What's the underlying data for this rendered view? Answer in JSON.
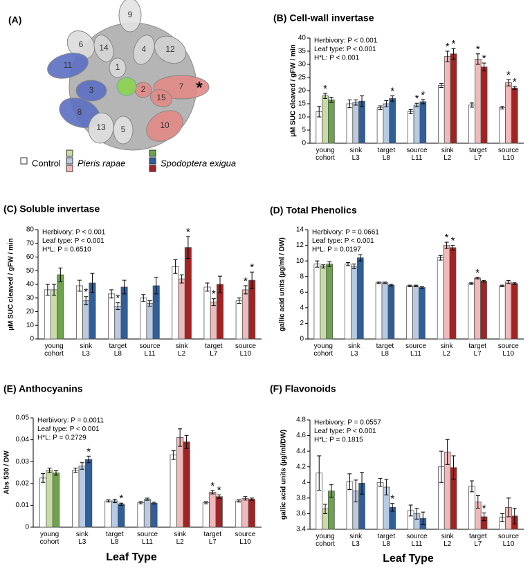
{
  "panel_a": {
    "label": "(A)",
    "leaves": [
      "9",
      "6",
      "14",
      "4",
      "12",
      "11",
      "1",
      "3",
      "7",
      "2",
      "15",
      "8",
      "13",
      "5",
      "10"
    ],
    "asterisk": "*"
  },
  "legend": [
    {
      "name": "Control",
      "colors": [
        "#ffffff"
      ]
    },
    {
      "name": "Pieris rapae",
      "colors": [
        "#c9dca5",
        "#b9cbe3",
        "#f1b9b9"
      ]
    },
    {
      "name": "Spodoptera exigua",
      "colors": [
        "#6da34c",
        "#2f5e98",
        "#a12323"
      ]
    }
  ],
  "chart_data": [
    {
      "type": "bar",
      "title": "(B) Cell-wall invertase",
      "ylabel": "µM SUC cleaved / gFW / min",
      "stats": [
        "Herbivory: P < 0.001",
        "Leaf type: P < 0.001",
        "H*L: P < 0.001"
      ],
      "categories": [
        "young\ncohort",
        "sink\nL3",
        "target\nL8",
        "source\nL11",
        "sink\nL2",
        "target\nL7",
        "source\nL10"
      ],
      "ylim": [
        0,
        40
      ],
      "yticks": [
        0,
        5,
        10,
        15,
        20,
        25,
        30,
        35,
        40
      ],
      "series": [
        {
          "colors": [
            "#ffffff",
            "#ffffff",
            "#ffffff",
            "#ffffff",
            "#ffffff",
            "#ffffff",
            "#ffffff"
          ],
          "values": [
            12,
            15,
            13.5,
            12,
            22,
            14.5,
            13.5
          ],
          "errors": [
            2,
            1.5,
            0.7,
            0.8,
            0.8,
            0.8,
            0.5
          ],
          "stars": [
            null,
            null,
            null,
            null,
            null,
            null,
            null
          ]
        },
        {
          "colors": [
            "#c9dca5",
            "#b9cbe3",
            "#b9cbe3",
            "#b9cbe3",
            "#f1b9b9",
            "#f1b9b9",
            "#f1b9b9"
          ],
          "values": [
            18,
            15.5,
            15,
            14.5,
            33,
            32,
            23
          ],
          "errors": [
            1,
            1,
            1.2,
            0.7,
            2,
            2,
            1.2
          ],
          "stars": [
            "*",
            null,
            null,
            "*",
            "*",
            "*",
            "*"
          ]
        },
        {
          "colors": [
            "#6da34c",
            "#2f5e98",
            "#2f5e98",
            "#2f5e98",
            "#a12323",
            "#a12323",
            "#a12323"
          ],
          "values": [
            16.5,
            16,
            17,
            15.8,
            34,
            29,
            21
          ],
          "errors": [
            1,
            2,
            1,
            0.8,
            2,
            1.5,
            0.6
          ],
          "stars": [
            null,
            null,
            "*",
            "*",
            "*",
            "*",
            "*"
          ]
        }
      ]
    },
    {
      "type": "bar",
      "title": "(C) Soluble invertase",
      "ylabel": "µM SUC cleaved / gFW / min",
      "stats": [
        "Herbivory: P < 0.001",
        "Leaf type: P < 0.001",
        "H*L: P = 0.6510"
      ],
      "categories": [
        "young\ncohort",
        "sink\nL3",
        "target\nL8",
        "source\nL11",
        "sink\nL2",
        "target\nL7",
        "source\nL10"
      ],
      "ylim": [
        0,
        80
      ],
      "yticks": [
        0,
        10,
        20,
        30,
        40,
        50,
        60,
        70,
        80
      ],
      "series": [
        {
          "colors": [
            "#ffffff",
            "#ffffff",
            "#ffffff",
            "#ffffff",
            "#ffffff",
            "#ffffff",
            "#ffffff"
          ],
          "values": [
            36,
            39,
            33,
            30,
            53,
            38,
            28
          ],
          "errors": [
            4,
            4,
            3,
            2.5,
            5,
            3,
            2
          ],
          "stars": [
            null,
            null,
            null,
            null,
            null,
            null,
            null
          ]
        },
        {
          "colors": [
            "#c9dca5",
            "#b9cbe3",
            "#b9cbe3",
            "#b9cbe3",
            "#f1b9b9",
            "#f1b9b9",
            "#f1b9b9"
          ],
          "values": [
            36,
            28,
            24,
            26,
            44,
            27,
            36
          ],
          "errors": [
            4,
            3,
            2.5,
            2,
            3,
            2.5,
            3
          ],
          "stars": [
            null,
            "*",
            "*",
            null,
            null,
            "*",
            "*"
          ]
        },
        {
          "colors": [
            "#6da34c",
            "#2f5e98",
            "#2f5e98",
            "#2f5e98",
            "#a12323",
            "#a12323",
            "#a12323"
          ],
          "values": [
            47,
            41,
            38,
            39,
            67,
            40,
            43
          ],
          "errors": [
            5,
            7,
            5,
            6,
            8,
            6,
            6
          ],
          "stars": [
            null,
            null,
            null,
            null,
            "*",
            null,
            "*"
          ]
        }
      ]
    },
    {
      "type": "bar",
      "title": "(D) Total Phenolics",
      "ylabel": "gallic acid units (µg/ml / DW)",
      "stats": [
        "Herbivory: P = 0.0661",
        "Leaf type: P < 0.001",
        "H*L: P = 0.0197"
      ],
      "categories": [
        "young\ncohort",
        "sink\nL3",
        "target\nL8",
        "source\nL11",
        "sink\nL2",
        "target\nL7",
        "source\nL10"
      ],
      "ylim": [
        0,
        14
      ],
      "yticks": [
        0,
        2,
        4,
        6,
        8,
        10,
        12,
        14
      ],
      "series": [
        {
          "colors": [
            "#ffffff",
            "#ffffff",
            "#ffffff",
            "#ffffff",
            "#ffffff",
            "#ffffff",
            "#ffffff"
          ],
          "values": [
            9.6,
            9.6,
            7.2,
            6.8,
            10.4,
            7.1,
            6.8
          ],
          "errors": [
            0.4,
            0.2,
            0.1,
            0.1,
            0.3,
            0.1,
            0.1
          ],
          "stars": [
            null,
            null,
            null,
            null,
            null,
            null,
            null
          ]
        },
        {
          "colors": [
            "#c9dca5",
            "#b9cbe3",
            "#b9cbe3",
            "#b9cbe3",
            "#f1b9b9",
            "#f1b9b9",
            "#f1b9b9"
          ],
          "values": [
            9.3,
            9.3,
            7.2,
            6.8,
            12,
            7.8,
            7.3
          ],
          "errors": [
            0.2,
            0.3,
            0.1,
            0.1,
            0.4,
            0.1,
            0.2
          ],
          "stars": [
            null,
            null,
            null,
            null,
            "*",
            "*",
            null
          ]
        },
        {
          "colors": [
            "#6da34c",
            "#2f5e98",
            "#2f5e98",
            "#2f5e98",
            "#a12323",
            "#a12323",
            "#a12323"
          ],
          "values": [
            9.6,
            10.4,
            6.9,
            6.6,
            11.7,
            7.4,
            7.1
          ],
          "errors": [
            0.3,
            0.4,
            0.1,
            0.1,
            0.3,
            0.1,
            0.1
          ],
          "stars": [
            null,
            null,
            null,
            null,
            "*",
            null,
            null
          ]
        }
      ]
    },
    {
      "type": "bar",
      "title": "(E) Anthocyanins",
      "ylabel": "Abs 530 / DW",
      "xlabel": "Leaf Type",
      "stats": [
        "Herbivory: P = 0.0011",
        "Leaf type: P < 0.001",
        "H*L: P = 0.2729"
      ],
      "categories": [
        "young\ncohort",
        "sink\nL3",
        "target\nL8",
        "source\nL11",
        "sink\nL2",
        "target\nL7",
        "source\nL10"
      ],
      "ylim": [
        0,
        0.05
      ],
      "yticks": [
        0,
        0.01,
        0.02,
        0.03,
        0.04,
        0.05
      ],
      "series": [
        {
          "colors": [
            "#ffffff",
            "#ffffff",
            "#ffffff",
            "#ffffff",
            "#ffffff",
            "#ffffff",
            "#ffffff"
          ],
          "values": [
            0.0225,
            0.026,
            0.012,
            0.0112,
            0.033,
            0.0112,
            0.012
          ],
          "errors": [
            0.002,
            0.001,
            0.0005,
            0.0005,
            0.002,
            0.0005,
            0.0005
          ],
          "stars": [
            null,
            null,
            null,
            null,
            null,
            null,
            null
          ]
        },
        {
          "colors": [
            "#c9dca5",
            "#b9cbe3",
            "#b9cbe3",
            "#b9cbe3",
            "#f1b9b9",
            "#f1b9b9",
            "#f1b9b9"
          ],
          "values": [
            0.026,
            0.028,
            0.012,
            0.0128,
            0.041,
            0.016,
            0.0132
          ],
          "errors": [
            0.001,
            0.0015,
            0.0008,
            0.0005,
            0.004,
            0.0008,
            0.0008
          ],
          "stars": [
            null,
            null,
            null,
            null,
            null,
            "*",
            null
          ]
        },
        {
          "colors": [
            "#6da34c",
            "#2f5e98",
            "#2f5e98",
            "#2f5e98",
            "#a12323",
            "#a12323",
            "#a12323"
          ],
          "values": [
            0.0248,
            0.031,
            0.0105,
            0.011,
            0.039,
            0.014,
            0.0128
          ],
          "errors": [
            0.001,
            0.0015,
            0.0005,
            0.0004,
            0.003,
            0.0008,
            0.0005
          ],
          "stars": [
            null,
            "*",
            "*",
            null,
            null,
            "*",
            null
          ]
        }
      ]
    },
    {
      "type": "bar",
      "title": "(F) Flavonoids",
      "ylabel": "gallic acid units (µg/ml/DW)",
      "xlabel": "Leaf Type",
      "stats": [
        "Herbivory: P = 0.0557",
        "Leaf type: P < 0.001",
        "H*L: P = 0.1815"
      ],
      "categories": [
        "young\ncohort",
        "sink\nL3",
        "target\nL8",
        "source\nL11",
        "sink\nL2",
        "target\nL7",
        "source\nL10"
      ],
      "ylim": [
        3.4,
        4.8
      ],
      "yticks": [
        3.4,
        3.6,
        3.8,
        4,
        4.2,
        4.4,
        4.6,
        4.8
      ],
      "series": [
        {
          "colors": [
            "#ffffff",
            "#ffffff",
            "#ffffff",
            "#ffffff",
            "#ffffff",
            "#ffffff",
            "#ffffff"
          ],
          "values": [
            4.12,
            4.01,
            4.0,
            3.64,
            4.2,
            3.95,
            3.55
          ],
          "errors": [
            0.22,
            0.1,
            0.05,
            0.07,
            0.2,
            0.07,
            0.05
          ],
          "stars": [
            null,
            null,
            null,
            null,
            null,
            null,
            null
          ]
        },
        {
          "colors": [
            "#c9dca5",
            "#b9cbe3",
            "#b9cbe3",
            "#b9cbe3",
            "#f1b9b9",
            "#f1b9b9",
            "#f1b9b9"
          ],
          "values": [
            3.66,
            3.89,
            3.94,
            3.6,
            4.39,
            3.75,
            3.68
          ],
          "errors": [
            0.06,
            0.14,
            0.1,
            0.07,
            0.16,
            0.08,
            0.12
          ],
          "stars": [
            null,
            null,
            null,
            null,
            null,
            null,
            null
          ]
        },
        {
          "colors": [
            "#6da34c",
            "#2f5e98",
            "#2f5e98",
            "#2f5e98",
            "#a12323",
            "#a12323",
            "#a12323"
          ],
          "values": [
            3.89,
            3.99,
            3.68,
            3.54,
            4.19,
            3.56,
            3.57
          ],
          "errors": [
            0.08,
            0.14,
            0.05,
            0.08,
            0.15,
            0.05,
            0.1
          ],
          "stars": [
            null,
            null,
            "*",
            null,
            null,
            "*",
            null
          ]
        }
      ]
    }
  ]
}
